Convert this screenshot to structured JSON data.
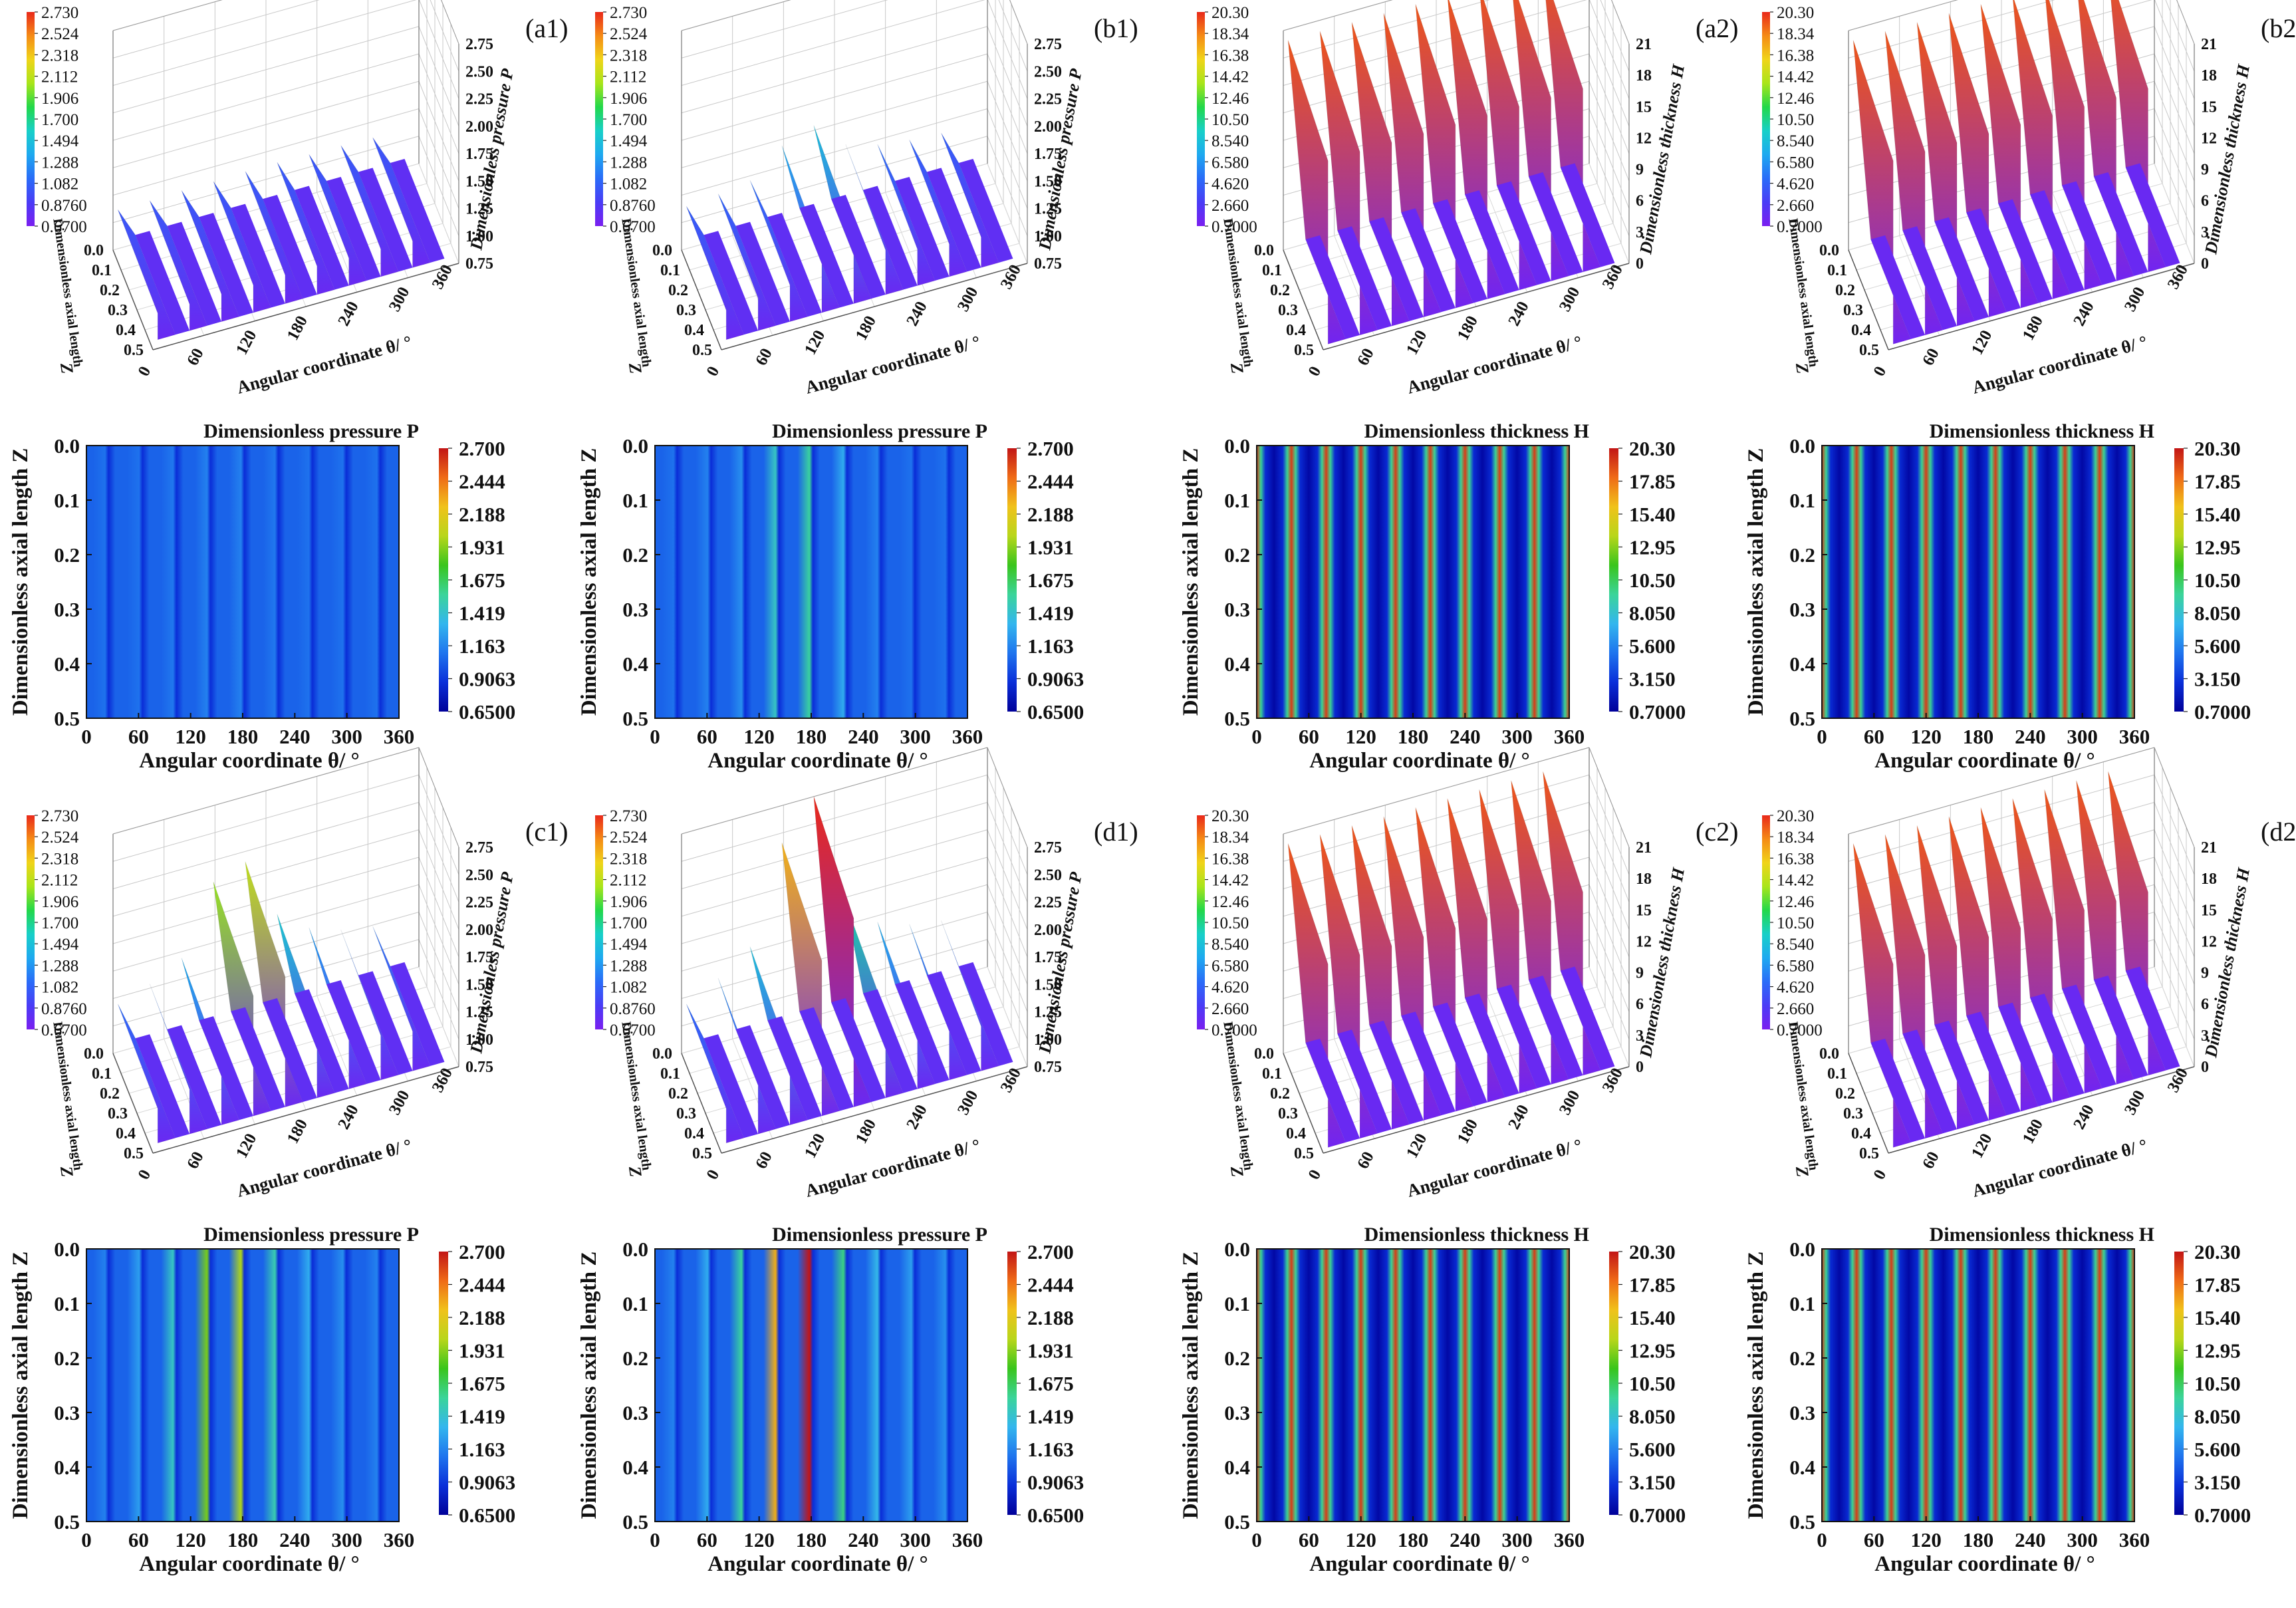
{
  "figure": "Dimensionless pressure and film thickness distributions",
  "colormaps": {
    "pressure_3d": [
      "#7a1ff0",
      "#4a3cf6",
      "#2a6cf8",
      "#1ea9f0",
      "#18d0c8",
      "#22d84a",
      "#a8e51a",
      "#f0d419",
      "#f58a16",
      "#e9291a"
    ],
    "pressure_2d": [
      "#000099",
      "#0a2fd9",
      "#1f74ee",
      "#33b6ee",
      "#3bd49a",
      "#39c51c",
      "#b8d61a",
      "#f0c21a",
      "#ef6b17",
      "#c21515"
    ],
    "thickness_3d": [
      "#7a1ff0",
      "#4a3cf6",
      "#2a6cf8",
      "#1ea9f0",
      "#18d0c8",
      "#22d84a",
      "#a8e51a",
      "#f0d419",
      "#f58a16",
      "#e9291a"
    ],
    "thickness_2d": [
      "#000099",
      "#0a2fd9",
      "#1f74ee",
      "#33b6ee",
      "#3bd49a",
      "#39c51c",
      "#b8d61a",
      "#f0c21a",
      "#ef6b17",
      "#c21515"
    ]
  },
  "colorbars": {
    "pressure_3d": [
      "2.730",
      "2.524",
      "2.318",
      "2.112",
      "1.906",
      "1.700",
      "1.494",
      "1.288",
      "1.082",
      "0.8760",
      "0.6700"
    ],
    "thickness_3d": [
      "20.30",
      "18.34",
      "16.38",
      "14.42",
      "12.46",
      "10.50",
      "8.540",
      "6.580",
      "4.620",
      "2.660",
      "0.7000"
    ],
    "pressure_2d": [
      "2.700",
      "2.444",
      "2.188",
      "1.931",
      "1.675",
      "1.419",
      "1.163",
      "0.9063",
      "0.6500"
    ],
    "thickness_2d": [
      "20.30",
      "17.85",
      "15.40",
      "12.95",
      "10.50",
      "8.050",
      "5.600",
      "3.150",
      "0.7000"
    ]
  },
  "axes": {
    "angular_label": "Angular coordinate θ/ °",
    "axial_label_2d": "Dimensionless axial length Z",
    "axial_label_3d": "Dimensionless axial length",
    "axial_label_3d_symbol": "Z",
    "pressure_label_3d": "Dimensionless pressure P",
    "thickness_label_3d": "Dimensionless thickness H",
    "pressure_title_2d": "Dimensionless pressure P",
    "thickness_title_2d": "Dimensionless thickness H",
    "theta_ticks": [
      "0",
      "60",
      "120",
      "180",
      "240",
      "300",
      "360"
    ],
    "z_ticks_2d": [
      "0.0",
      "0.1",
      "0.2",
      "0.3",
      "0.4",
      "0.5"
    ],
    "z_ticks_3d": [
      "0.0",
      "0.1",
      "0.2",
      "0.3",
      "0.4",
      "0.5"
    ],
    "p_ticks_3d": [
      "0.75",
      "1.00",
      "1.25",
      "1.50",
      "1.75",
      "2.00",
      "2.25",
      "2.50",
      "2.75"
    ],
    "h_ticks_3d": [
      "0",
      "3",
      "6",
      "9",
      "12",
      "15",
      "18",
      "21"
    ]
  },
  "chart_data": [
    {
      "id": "a1",
      "label": "(a1)",
      "type": "surface3d",
      "quantity": "P",
      "theta_range": [
        0,
        360
      ],
      "z_range": [
        0,
        0.5
      ],
      "zlim": [
        0.67,
        2.73
      ],
      "ridges": [
        1.02,
        1.02,
        1.03,
        1.03,
        1.04,
        1.04,
        1.03,
        1.03,
        1.02
      ]
    },
    {
      "id": "b1",
      "label": "(b1)",
      "type": "surface3d",
      "quantity": "P",
      "theta_range": [
        0,
        360
      ],
      "z_range": [
        0,
        0.5
      ],
      "zlim": [
        0.67,
        2.73
      ],
      "ridges": [
        1.05,
        1.08,
        1.12,
        1.35,
        1.45,
        1.2,
        1.12,
        1.08,
        1.06
      ]
    },
    {
      "id": "a2",
      "label": "(a2)",
      "type": "surface3d",
      "quantity": "H",
      "theta_range": [
        0,
        360
      ],
      "z_range": [
        0,
        0.5
      ],
      "zlim": [
        0,
        21
      ],
      "ridges": [
        20.3,
        20.3,
        20.3,
        20.3,
        20.3,
        20.3,
        20.3,
        20.3,
        20.3
      ]
    },
    {
      "id": "b2",
      "label": "(b2)",
      "type": "surface3d",
      "quantity": "H",
      "theta_range": [
        0,
        360
      ],
      "z_range": [
        0,
        0.5
      ],
      "zlim": [
        0,
        21
      ],
      "ridges": [
        20.3,
        20.3,
        20.3,
        20.3,
        20.3,
        20.3,
        20.3,
        20.3,
        20.3
      ]
    },
    {
      "id": "a1m",
      "type": "contour",
      "quantity": "P",
      "theta_range": [
        0,
        360
      ],
      "z_range": [
        0,
        0.5
      ],
      "clim": [
        0.65,
        2.7
      ],
      "stripes": [
        1.1,
        1.1,
        1.12,
        1.15,
        1.15,
        1.12,
        1.1,
        1.1,
        1.1
      ]
    },
    {
      "id": "b1m",
      "type": "contour",
      "quantity": "P",
      "theta_range": [
        0,
        360
      ],
      "z_range": [
        0,
        0.5
      ],
      "clim": [
        0.65,
        2.7
      ],
      "stripes": [
        1.1,
        1.15,
        1.2,
        1.45,
        1.55,
        1.3,
        1.15,
        1.1,
        1.1
      ]
    },
    {
      "id": "a2m",
      "type": "contour",
      "quantity": "H",
      "theta_range": [
        0,
        360
      ],
      "z_range": [
        0,
        0.5
      ],
      "clim": [
        0.7,
        20.3
      ],
      "grooves": 9
    },
    {
      "id": "b2m",
      "type": "contour",
      "quantity": "H",
      "theta_range": [
        0,
        360
      ],
      "z_range": [
        0,
        0.5
      ],
      "clim": [
        0.7,
        20.3
      ],
      "grooves": 9
    },
    {
      "id": "c1",
      "label": "(c1)",
      "type": "surface3d",
      "quantity": "P",
      "theta_range": [
        0,
        360
      ],
      "z_range": [
        0,
        0.5
      ],
      "zlim": [
        0.67,
        2.73
      ],
      "ridges": [
        1.1,
        1.2,
        1.35,
        1.95,
        2.05,
        1.5,
        1.3,
        1.2,
        1.15
      ]
    },
    {
      "id": "d1",
      "label": "(d1)",
      "type": "surface3d",
      "quantity": "P",
      "theta_range": [
        0,
        360
      ],
      "z_range": [
        0,
        0.5
      ],
      "zlim": [
        0.67,
        2.73
      ],
      "ridges": [
        1.1,
        1.25,
        1.45,
        2.3,
        2.7,
        1.6,
        1.35,
        1.25,
        1.2
      ]
    },
    {
      "id": "c2",
      "label": "(c2)",
      "type": "surface3d",
      "quantity": "H",
      "theta_range": [
        0,
        360
      ],
      "z_range": [
        0,
        0.5
      ],
      "zlim": [
        0,
        21
      ],
      "ridges": [
        20.3,
        20.3,
        20.3,
        20.3,
        20.3,
        20.3,
        20.3,
        20.3,
        20.3
      ]
    },
    {
      "id": "d2",
      "label": "(d2)",
      "type": "surface3d",
      "quantity": "H",
      "theta_range": [
        0,
        360
      ],
      "z_range": [
        0,
        0.5
      ],
      "zlim": [
        0,
        21
      ],
      "ridges": [
        20.3,
        20.3,
        20.3,
        20.3,
        20.3,
        20.3,
        20.3,
        20.3,
        20.3
      ]
    },
    {
      "id": "c1m",
      "type": "contour",
      "quantity": "P",
      "theta_range": [
        0,
        360
      ],
      "z_range": [
        0,
        0.5
      ],
      "clim": [
        0.65,
        2.7
      ],
      "stripes": [
        1.15,
        1.25,
        1.45,
        1.9,
        2.0,
        1.5,
        1.3,
        1.2,
        1.15
      ]
    },
    {
      "id": "d1m",
      "type": "contour",
      "quantity": "P",
      "theta_range": [
        0,
        360
      ],
      "z_range": [
        0,
        0.5
      ],
      "clim": [
        0.65,
        2.7
      ],
      "stripes": [
        1.15,
        1.3,
        1.55,
        2.3,
        2.7,
        1.6,
        1.35,
        1.25,
        1.2
      ]
    },
    {
      "id": "c2m",
      "type": "contour",
      "quantity": "H",
      "theta_range": [
        0,
        360
      ],
      "z_range": [
        0,
        0.5
      ],
      "clim": [
        0.7,
        20.3
      ],
      "grooves": 9
    },
    {
      "id": "d2m",
      "type": "contour",
      "quantity": "H",
      "theta_range": [
        0,
        360
      ],
      "z_range": [
        0,
        0.5
      ],
      "clim": [
        0.7,
        20.3
      ],
      "grooves": 9
    }
  ]
}
